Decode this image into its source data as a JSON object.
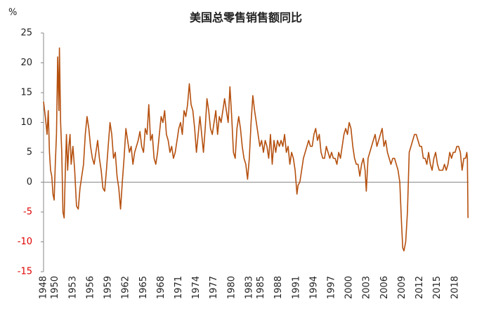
{
  "chart_data": {
    "type": "line",
    "title": "美国总零售销售额同比",
    "y_label": "%",
    "x": [
      1948.0,
      1948.3,
      1948.6,
      1948.8,
      1949.0,
      1949.2,
      1949.4,
      1949.6,
      1949.8,
      1950.0,
      1950.2,
      1950.4,
      1950.6,
      1950.7,
      1950.9,
      1951.1,
      1951.3,
      1951.5,
      1951.7,
      1951.9,
      1952.1,
      1952.3,
      1952.5,
      1952.7,
      1953.0,
      1953.3,
      1953.6,
      1953.9,
      1954.2,
      1954.5,
      1954.8,
      1955.1,
      1955.4,
      1955.7,
      1956.0,
      1956.3,
      1956.6,
      1956.9,
      1957.2,
      1957.5,
      1957.8,
      1958.1,
      1958.4,
      1958.7,
      1959.0,
      1959.3,
      1959.6,
      1959.9,
      1960.2,
      1960.5,
      1960.8,
      1961.1,
      1961.4,
      1961.7,
      1962.0,
      1962.3,
      1962.6,
      1962.9,
      1963.2,
      1963.5,
      1963.8,
      1964.1,
      1964.4,
      1964.7,
      1965.0,
      1965.3,
      1965.6,
      1965.9,
      1966.2,
      1966.5,
      1966.8,
      1967.1,
      1967.4,
      1967.7,
      1968.0,
      1968.3,
      1968.6,
      1968.9,
      1969.2,
      1969.5,
      1969.8,
      1970.1,
      1970.4,
      1970.7,
      1971.0,
      1971.3,
      1971.6,
      1971.9,
      1972.2,
      1972.5,
      1972.8,
      1973.1,
      1973.4,
      1973.7,
      1974.0,
      1974.3,
      1974.6,
      1974.9,
      1975.2,
      1975.5,
      1975.8,
      1976.1,
      1976.4,
      1976.7,
      1977.0,
      1977.3,
      1977.6,
      1977.9,
      1978.2,
      1978.5,
      1978.8,
      1979.1,
      1979.4,
      1979.7,
      1980.0,
      1980.3,
      1980.6,
      1980.9,
      1981.2,
      1981.5,
      1981.8,
      1982.1,
      1982.4,
      1982.7,
      1983.0,
      1983.3,
      1983.6,
      1983.9,
      1984.2,
      1984.5,
      1984.8,
      1985.1,
      1985.4,
      1985.7,
      1986.0,
      1986.3,
      1986.6,
      1986.9,
      1987.2,
      1987.5,
      1987.8,
      1988.1,
      1988.4,
      1988.7,
      1989.0,
      1989.3,
      1989.6,
      1989.9,
      1990.2,
      1990.5,
      1990.8,
      1991.1,
      1991.3,
      1991.6,
      1991.9,
      1992.2,
      1992.5,
      1992.8,
      1993.1,
      1993.4,
      1993.7,
      1994.0,
      1994.3,
      1994.6,
      1994.9,
      1995.2,
      1995.5,
      1995.8,
      1996.1,
      1996.4,
      1996.7,
      1997.0,
      1997.3,
      1997.6,
      1997.9,
      1998.2,
      1998.5,
      1998.8,
      1999.1,
      1999.4,
      1999.7,
      2000.0,
      2000.3,
      2000.6,
      2000.9,
      2001.2,
      2001.5,
      2001.8,
      2002.1,
      2002.4,
      2002.7,
      2002.9,
      2003.2,
      2003.5,
      2003.8,
      2004.1,
      2004.4,
      2004.7,
      2005.0,
      2005.3,
      2005.6,
      2005.9,
      2006.2,
      2006.5,
      2006.8,
      2007.1,
      2007.4,
      2007.7,
      2008.0,
      2008.3,
      2008.6,
      2008.9,
      2009.1,
      2009.3,
      2009.6,
      2009.9,
      2010.2,
      2010.5,
      2010.8,
      2011.1,
      2011.4,
      2011.7,
      2012.0,
      2012.3,
      2012.6,
      2012.9,
      2013.2,
      2013.5,
      2013.8,
      2014.1,
      2014.4,
      2014.7,
      2015.0,
      2015.3,
      2015.6,
      2015.9,
      2016.2,
      2016.5,
      2016.8,
      2017.1,
      2017.4,
      2017.7,
      2018.0,
      2018.3,
      2018.6,
      2018.9,
      2019.2,
      2019.5,
      2019.8,
      2020.0,
      2020.1,
      2020.2
    ],
    "series": [
      {
        "color": "#b5500f",
        "values": [
          13.5,
          11,
          8,
          12,
          5,
          2,
          1,
          -2,
          -3,
          3,
          8,
          21,
          12,
          22.5,
          10,
          5,
          -5,
          -6,
          2,
          8,
          2,
          6,
          8,
          3,
          6,
          2,
          -4,
          -4.5,
          -1,
          1,
          3,
          8,
          11,
          9,
          6,
          4,
          3,
          5,
          7,
          4,
          2,
          -1,
          -1.5,
          2,
          6,
          10,
          8,
          4,
          5,
          1,
          -1,
          -4.5,
          0,
          4,
          9,
          7,
          5,
          6,
          3,
          5,
          6,
          7,
          8.5,
          6,
          5,
          9,
          8,
          13,
          7,
          8,
          4,
          3,
          5,
          8,
          11,
          10,
          12,
          8,
          7,
          5,
          6,
          4,
          5,
          7,
          9,
          10,
          8,
          12,
          11,
          13,
          16.5,
          13,
          12,
          9,
          5,
          8,
          11,
          8,
          5,
          9,
          14,
          12,
          9,
          8,
          10,
          12,
          8,
          11,
          10,
          12,
          14,
          12,
          10,
          16,
          11,
          5,
          4,
          9,
          11,
          9,
          6,
          4,
          3,
          0.5,
          4,
          10,
          14.5,
          12,
          10,
          8,
          6,
          7,
          5,
          7,
          6,
          4,
          8,
          3,
          7,
          5,
          7,
          6,
          7,
          6,
          8,
          5,
          6,
          3,
          5,
          4,
          2,
          -2,
          -0.5,
          0,
          2,
          4,
          5,
          6,
          7,
          6,
          6,
          8,
          9,
          7,
          8,
          5,
          4,
          4,
          6,
          5,
          4,
          5,
          4,
          4,
          3,
          5,
          4,
          6,
          8,
          9,
          8,
          10,
          9,
          6,
          4,
          3,
          3,
          1,
          3,
          4,
          2,
          -1.5,
          4,
          5,
          6,
          7,
          8,
          6,
          7,
          8,
          9,
          6,
          7,
          5,
          4,
          3,
          4,
          4,
          3,
          2,
          0,
          -7,
          -11,
          -11.5,
          -10,
          -5,
          5,
          6,
          7,
          8,
          8,
          7,
          6,
          6,
          4,
          4,
          3,
          5,
          3,
          2,
          4,
          5,
          3,
          2,
          2,
          2,
          3,
          2,
          3,
          5,
          4,
          5,
          5,
          6,
          6,
          5,
          2,
          4,
          4,
          5,
          4,
          -6
        ]
      }
    ],
    "xlim": [
      1948,
      2020.3
    ],
    "xticks": [
      1948,
      1950,
      1953,
      1956,
      1959,
      1962,
      1965,
      1968,
      1971,
      1974,
      1977,
      1980,
      1983,
      1985,
      1988,
      1991,
      1994,
      1997,
      2000,
      2003,
      2006,
      2009,
      2012,
      2015,
      2018
    ],
    "ylim": [
      -15,
      25
    ],
    "yticks": [
      25,
      20,
      15,
      10,
      5,
      0,
      -5,
      -10,
      -15
    ],
    "negative_tick_color": "#e00000"
  }
}
